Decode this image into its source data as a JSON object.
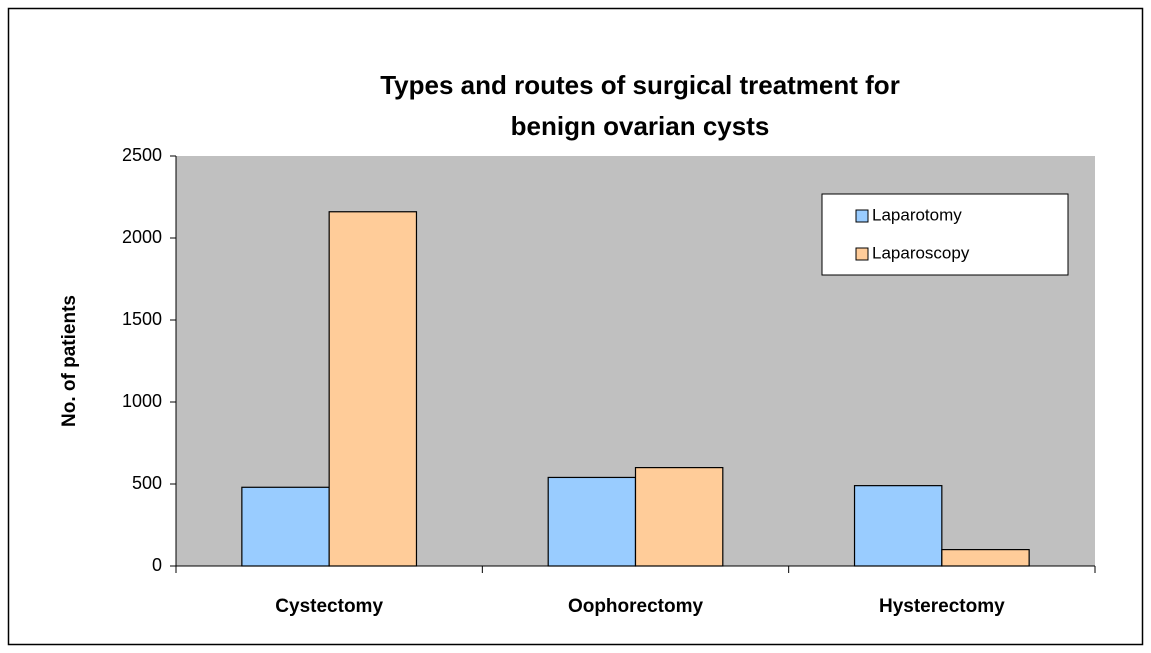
{
  "chart_data": {
    "type": "bar",
    "title": [
      "Types and routes of surgical treatment for",
      "benign ovarian cysts"
    ],
    "y_label": "No. of patients",
    "categories": [
      "Cystectomy",
      "Oophorectomy",
      "Hysterectomy"
    ],
    "series": [
      {
        "name": "Laparotomy",
        "color": "#99ccff",
        "values": [
          480,
          540,
          490
        ]
      },
      {
        "name": "Laparoscopy",
        "color": "#ffcc99",
        "values": [
          2160,
          600,
          100
        ]
      }
    ],
    "ylim": [
      0,
      2500
    ],
    "yticks": [
      0,
      500,
      1000,
      1500,
      2000,
      2500
    ],
    "plot_background": "#c0c0c0",
    "legend": "upper right",
    "grid": false
  }
}
